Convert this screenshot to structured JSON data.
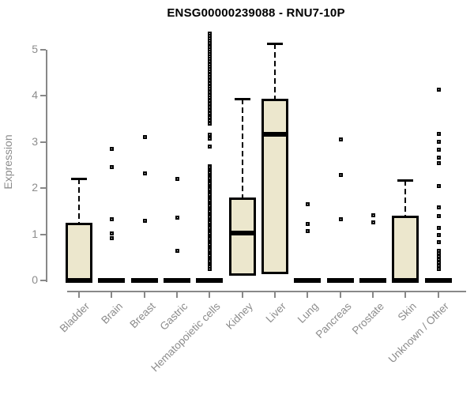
{
  "chart_data": {
    "type": "boxplot",
    "title": "ENSG00000239088 - RNU7-10P",
    "ylabel": "Expression",
    "xlabel": "",
    "ylim": [
      0,
      5
    ],
    "yticks": [
      0,
      1,
      2,
      3,
      4,
      5
    ],
    "grid": false,
    "legend": null,
    "colors": {
      "box_fill": "#ece7cd",
      "box_border": "#000000",
      "axis": "#888888",
      "tick_text": "#8c8c8c",
      "title_text": "#000000",
      "background": "#ffffff"
    },
    "categories": [
      "Bladder",
      "Brain",
      "Breast",
      "Gastric",
      "Hematopoietic cells",
      "Kidney",
      "Liver",
      "Lung",
      "Pancreas",
      "Prostate",
      "Skin",
      "Unknown / Other"
    ],
    "boxes": [
      {
        "category": "Bladder",
        "q1": 0,
        "median": 0,
        "q3": 1.25,
        "whisker_high": 2.21,
        "outliers": []
      },
      {
        "category": "Brain",
        "q1": 0,
        "median": 0,
        "q3": 0,
        "whisker_high": null,
        "outliers": [
          2.86,
          2.47,
          1.34,
          1.03,
          0.92
        ]
      },
      {
        "category": "Breast",
        "q1": 0,
        "median": 0,
        "q3": 0,
        "whisker_high": null,
        "outliers": [
          3.12,
          2.33,
          1.3
        ]
      },
      {
        "category": "Gastric",
        "q1": 0,
        "median": 0,
        "q3": 0,
        "whisker_high": null,
        "outliers": [
          2.21,
          1.37,
          0.65
        ]
      },
      {
        "category": "Hematopoietic cells",
        "q1": 0,
        "median": 0,
        "q3": 0,
        "whisker_high": null,
        "outliers": [
          5.36,
          5.3,
          5.25,
          5.21,
          5.16,
          5.11,
          5.06,
          5.01,
          4.96,
          4.91,
          4.86,
          4.81,
          4.76,
          4.7,
          4.64,
          4.59,
          4.53,
          4.47,
          4.41,
          4.35,
          4.28,
          4.22,
          4.16,
          4.1,
          4.03,
          3.97,
          3.9,
          3.84,
          3.77,
          3.7,
          3.63,
          3.55,
          3.47,
          3.4,
          3.17,
          3.08,
          2.91,
          2.48,
          2.46,
          2.42,
          2.38,
          2.34,
          2.3,
          2.26,
          2.22,
          2.18,
          2.14,
          2.1,
          2.06,
          2.02,
          1.98,
          1.94,
          1.9,
          1.86,
          1.82,
          1.78,
          1.74,
          1.7,
          1.66,
          1.62,
          1.58,
          1.54,
          1.5,
          1.46,
          1.42,
          1.38,
          1.34,
          1.3,
          1.26,
          1.22,
          1.18,
          1.14,
          1.1,
          1.06,
          1.02,
          0.98,
          0.94,
          0.9,
          0.86,
          0.82,
          0.78,
          0.74,
          0.7,
          0.66,
          0.62,
          0.58,
          0.54,
          0.5,
          0.46,
          0.42,
          0.38,
          0.34,
          0.3,
          0.26
        ]
      },
      {
        "category": "Kidney",
        "q1": 0.1,
        "median": 1.03,
        "q3": 1.8,
        "whisker_high": 3.94,
        "outliers": []
      },
      {
        "category": "Liver",
        "q1": 0.14,
        "median": 3.16,
        "q3": 3.94,
        "whisker_high": 5.14,
        "outliers": []
      },
      {
        "category": "Lung",
        "q1": 0,
        "median": 0,
        "q3": 0,
        "whisker_high": null,
        "outliers": [
          1.66,
          1.23,
          1.08
        ]
      },
      {
        "category": "Pancreas",
        "q1": 0,
        "median": 0,
        "q3": 0,
        "whisker_high": null,
        "outliers": [
          3.06,
          2.29,
          1.34
        ]
      },
      {
        "category": "Prostate",
        "q1": 0,
        "median": 0,
        "q3": 0,
        "whisker_high": null,
        "outliers": [
          1.42,
          1.27
        ]
      },
      {
        "category": "Skin",
        "q1": 0,
        "median": 0,
        "q3": 1.4,
        "whisker_high": 2.17,
        "outliers": []
      },
      {
        "category": "Unknown / Other",
        "q1": 0,
        "median": 0,
        "q3": 0,
        "whisker_high": null,
        "outliers": [
          4.14,
          3.18,
          3.01,
          2.84,
          2.67,
          2.55,
          2.05,
          1.59,
          1.4,
          1.15,
          0.99,
          0.84,
          0.65,
          0.6,
          0.53,
          0.46,
          0.39,
          0.33,
          0.26
        ]
      }
    ]
  }
}
